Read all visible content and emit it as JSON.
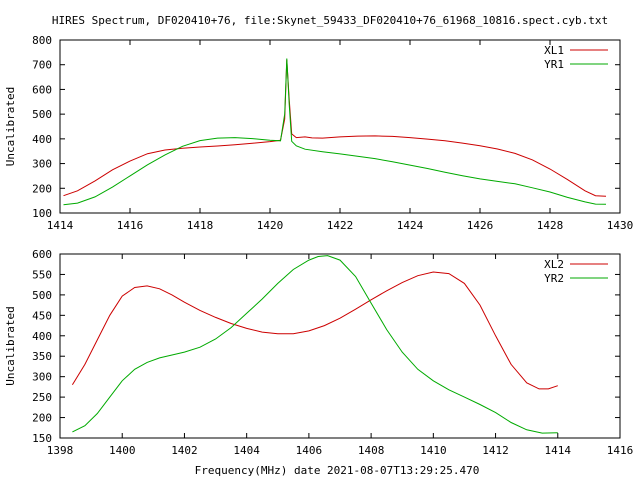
{
  "page": {
    "title": "HIRES Spectrum, DF020410+76, file:Skynet_59433_DF020410+76_61968_10816.spect.cyb.txt",
    "footer": "Frequency(MHz) date 2021-08-07T13:29:25.470"
  },
  "chart_data": [
    {
      "type": "line",
      "xlabel": "",
      "ylabel": "Uncalibrated",
      "xlim": [
        1414,
        1430
      ],
      "ylim": [
        100,
        800
      ],
      "xticks": [
        1414,
        1416,
        1418,
        1420,
        1422,
        1424,
        1426,
        1428,
        1430
      ],
      "yticks": [
        100,
        200,
        300,
        400,
        500,
        600,
        700,
        800
      ],
      "legend_position": "top-right",
      "grid": false,
      "series": [
        {
          "name": "XL1",
          "color": "#cc0000",
          "x": [
            1414.1,
            1414.5,
            1415,
            1415.5,
            1416,
            1416.5,
            1417,
            1417.5,
            1418,
            1418.5,
            1419,
            1419.5,
            1420,
            1420.3,
            1420.42,
            1420.48,
            1420.55,
            1420.62,
            1420.75,
            1421,
            1421.2,
            1421.5,
            1422,
            1422.5,
            1423,
            1423.5,
            1424,
            1424.5,
            1425,
            1425.5,
            1426,
            1426.5,
            1427,
            1427.5,
            1428,
            1428.5,
            1429,
            1429.3,
            1429.6
          ],
          "y": [
            170,
            190,
            230,
            275,
            310,
            340,
            355,
            362,
            367,
            371,
            376,
            382,
            389,
            394,
            480,
            720,
            560,
            420,
            405,
            408,
            404,
            403,
            408,
            411,
            412,
            410,
            405,
            399,
            392,
            383,
            372,
            359,
            341,
            315,
            278,
            235,
            190,
            170,
            168
          ]
        },
        {
          "name": "YR1",
          "color": "#00aa00",
          "x": [
            1414.1,
            1414.5,
            1415,
            1415.5,
            1416,
            1416.5,
            1417,
            1417.5,
            1418,
            1418.5,
            1419,
            1419.5,
            1420,
            1420.3,
            1420.42,
            1420.48,
            1420.55,
            1420.62,
            1420.75,
            1421,
            1421.5,
            1422,
            1422.5,
            1423,
            1423.5,
            1424,
            1424.5,
            1425,
            1425.5,
            1426,
            1426.5,
            1427,
            1427.5,
            1428,
            1428.5,
            1429,
            1429.3,
            1429.6
          ],
          "y": [
            133,
            140,
            165,
            205,
            250,
            295,
            335,
            370,
            393,
            403,
            405,
            401,
            394,
            392,
            500,
            725,
            540,
            390,
            372,
            358,
            348,
            339,
            330,
            320,
            307,
            294,
            280,
            265,
            251,
            238,
            228,
            218,
            202,
            185,
            163,
            145,
            136,
            135
          ]
        }
      ]
    },
    {
      "type": "line",
      "xlabel": "",
      "ylabel": "Uncalibrated",
      "xlim": [
        1398,
        1416
      ],
      "ylim": [
        150,
        600
      ],
      "xticks": [
        1398,
        1400,
        1402,
        1404,
        1406,
        1408,
        1410,
        1412,
        1414,
        1416
      ],
      "yticks": [
        150,
        200,
        250,
        300,
        350,
        400,
        450,
        500,
        550,
        600
      ],
      "legend_position": "top-right",
      "grid": false,
      "series": [
        {
          "name": "XL2",
          "color": "#cc0000",
          "x": [
            1398.4,
            1398.8,
            1399.2,
            1399.6,
            1400,
            1400.4,
            1400.8,
            1401.2,
            1401.6,
            1402,
            1402.5,
            1403,
            1403.5,
            1404,
            1404.5,
            1405,
            1405.5,
            1406,
            1406.5,
            1407,
            1407.5,
            1408,
            1408.5,
            1409,
            1409.5,
            1410,
            1410.5,
            1411,
            1411.5,
            1412,
            1412.5,
            1413,
            1413.4,
            1413.7,
            1414
          ],
          "y": [
            280,
            330,
            390,
            450,
            497,
            518,
            522,
            515,
            500,
            482,
            462,
            445,
            430,
            418,
            409,
            405,
            405,
            412,
            425,
            443,
            465,
            488,
            510,
            530,
            547,
            556,
            552,
            528,
            475,
            400,
            330,
            285,
            270,
            270,
            278
          ]
        },
        {
          "name": "YR2",
          "color": "#00aa00",
          "x": [
            1398.4,
            1398.8,
            1399.2,
            1399.6,
            1400,
            1400.4,
            1400.8,
            1401.2,
            1401.6,
            1402,
            1402.5,
            1403,
            1403.5,
            1404,
            1404.5,
            1405,
            1405.5,
            1406,
            1406.3,
            1406.6,
            1407,
            1407.5,
            1408,
            1408.5,
            1409,
            1409.5,
            1410,
            1410.5,
            1411,
            1411.5,
            1412,
            1412.5,
            1413,
            1413.5,
            1414
          ],
          "y": [
            165,
            180,
            210,
            250,
            290,
            318,
            335,
            346,
            353,
            360,
            372,
            392,
            420,
            455,
            490,
            528,
            562,
            585,
            594,
            596,
            585,
            545,
            480,
            415,
            360,
            318,
            290,
            268,
            250,
            232,
            212,
            188,
            170,
            162,
            163
          ]
        }
      ]
    }
  ]
}
